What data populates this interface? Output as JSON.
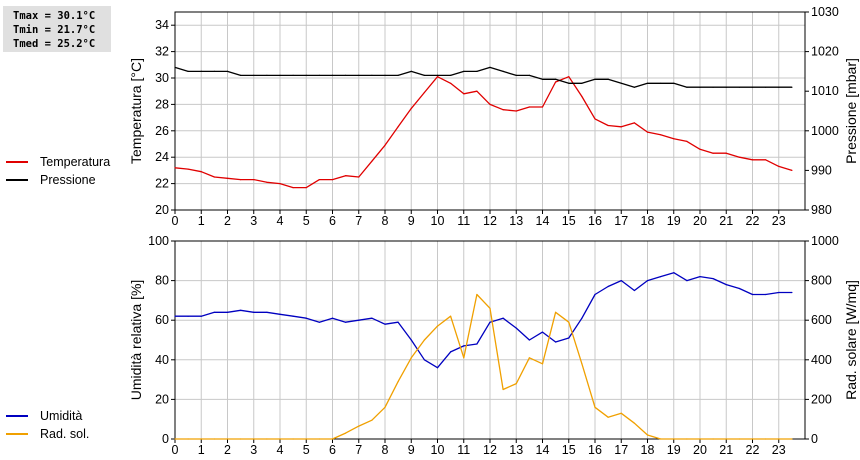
{
  "stats": {
    "tmax": "Tmax = 30.1°C",
    "tmin": "Tmin = 21.7°C",
    "tmed": "Tmed = 25.2°C"
  },
  "colors": {
    "temperature": "#e00000",
    "pressure": "#000000",
    "humidity": "#0000c0",
    "radiation": "#f0a000",
    "grid": "#c8c8c8"
  },
  "chart_data": [
    {
      "type": "line",
      "xlabel": "",
      "ylabel": "Temperatura [°C]",
      "ylabel_right": "Pressione [mbar]",
      "xlim": [
        0,
        24
      ],
      "ylim": [
        20,
        35
      ],
      "ylim_right": [
        980,
        1030
      ],
      "x_ticks": [
        "0",
        "1",
        "2",
        "3",
        "4",
        "5",
        "6",
        "7",
        "8",
        "9",
        "10",
        "11",
        "12",
        "13",
        "14",
        "15",
        "16",
        "17",
        "18",
        "19",
        "20",
        "21",
        "22",
        "23"
      ],
      "y_ticks": [
        "20",
        "22",
        "24",
        "26",
        "28",
        "30",
        "32",
        "34"
      ],
      "y_ticks_right": [
        "980",
        "990",
        "1000",
        "1010",
        "1020",
        "1030"
      ],
      "grid": true,
      "legend_position": "left",
      "series": [
        {
          "name": "Temperatura",
          "axis": "left",
          "x": [
            0,
            0.5,
            1,
            1.5,
            2,
            2.5,
            3,
            3.5,
            4,
            4.5,
            5,
            5.5,
            6,
            6.5,
            7,
            7.5,
            8,
            8.5,
            9,
            9.5,
            10,
            10.5,
            11,
            11.5,
            12,
            12.5,
            13,
            13.5,
            14,
            14.5,
            15,
            15.5,
            16,
            16.5,
            17,
            17.5,
            18,
            18.5,
            19,
            19.5,
            20,
            20.5,
            21,
            21.5,
            22,
            22.5,
            23,
            23.5
          ],
          "y": [
            23.2,
            23.1,
            22.9,
            22.5,
            22.4,
            22.3,
            22.3,
            22.1,
            22.0,
            21.7,
            21.7,
            22.3,
            22.3,
            22.6,
            22.5,
            23.7,
            24.9,
            26.3,
            27.7,
            28.9,
            30.1,
            29.6,
            28.8,
            29.0,
            28.0,
            27.6,
            27.5,
            27.8,
            27.8,
            29.7,
            30.1,
            28.6,
            26.9,
            26.4,
            26.3,
            26.6,
            25.9,
            25.7,
            25.4,
            25.2,
            24.6,
            24.3,
            24.3,
            24.0,
            23.8,
            23.8,
            23.3,
            23.0
          ]
        },
        {
          "name": "Pressione",
          "axis": "right",
          "x": [
            0,
            0.5,
            1,
            1.5,
            2,
            2.5,
            3,
            3.5,
            4,
            4.5,
            5,
            5.5,
            6,
            6.5,
            7,
            7.5,
            8,
            8.5,
            9,
            9.5,
            10,
            10.5,
            11,
            11.5,
            12,
            12.5,
            13,
            13.5,
            14,
            14.5,
            15,
            15.5,
            16,
            16.5,
            17,
            17.5,
            18,
            18.5,
            19,
            19.5,
            20,
            20.5,
            21,
            21.5,
            22,
            22.5,
            23,
            23.5
          ],
          "y": [
            1016,
            1015,
            1015,
            1015,
            1015,
            1014,
            1014,
            1014,
            1014,
            1014,
            1014,
            1014,
            1014,
            1014,
            1014,
            1014,
            1014,
            1014,
            1015,
            1014,
            1014,
            1014,
            1015,
            1015,
            1016,
            1015,
            1014,
            1014,
            1013,
            1013,
            1012,
            1012,
            1013,
            1013,
            1012,
            1011,
            1012,
            1012,
            1012,
            1011,
            1011,
            1011,
            1011,
            1011,
            1011,
            1011,
            1011,
            1011
          ]
        }
      ]
    },
    {
      "type": "line",
      "xlabel": "",
      "ylabel": "Umidità relativa [%]",
      "ylabel_right": "Rad. solare [W/mq]",
      "xlim": [
        0,
        24
      ],
      "ylim": [
        0,
        100
      ],
      "ylim_right": [
        0,
        1000
      ],
      "x_ticks": [
        "0",
        "1",
        "2",
        "3",
        "4",
        "5",
        "6",
        "7",
        "8",
        "9",
        "10",
        "11",
        "12",
        "13",
        "14",
        "15",
        "16",
        "17",
        "18",
        "19",
        "20",
        "21",
        "22",
        "23"
      ],
      "y_ticks": [
        "0",
        "20",
        "40",
        "60",
        "80",
        "100"
      ],
      "y_ticks_right": [
        "0",
        "200",
        "400",
        "600",
        "800",
        "1000"
      ],
      "grid": true,
      "legend_position": "left",
      "series": [
        {
          "name": "Umidità",
          "axis": "left",
          "x": [
            0,
            0.5,
            1,
            1.5,
            2,
            2.5,
            3,
            3.5,
            4,
            4.5,
            5,
            5.5,
            6,
            6.5,
            7,
            7.5,
            8,
            8.5,
            9,
            9.5,
            10,
            10.5,
            11,
            11.5,
            12,
            12.5,
            13,
            13.5,
            14,
            14.5,
            15,
            15.5,
            16,
            16.5,
            17,
            17.5,
            18,
            18.5,
            19,
            19.5,
            20,
            20.5,
            21,
            21.5,
            22,
            22.5,
            23,
            23.5
          ],
          "y": [
            62,
            62,
            62,
            64,
            64,
            65,
            64,
            64,
            63,
            62,
            61,
            59,
            61,
            59,
            60,
            61,
            58,
            59,
            50,
            40,
            36,
            44,
            47,
            48,
            59,
            61,
            56,
            50,
            54,
            49,
            51,
            61,
            73,
            77,
            80,
            75,
            80,
            82,
            84,
            80,
            82,
            81,
            78,
            76,
            73,
            73,
            74,
            74
          ]
        },
        {
          "name": "Rad. sol.",
          "axis": "right",
          "x": [
            0,
            0.5,
            1,
            1.5,
            2,
            2.5,
            3,
            3.5,
            4,
            4.5,
            5,
            5.5,
            6,
            6.5,
            7,
            7.5,
            8,
            8.5,
            9,
            9.5,
            10,
            10.5,
            11,
            11.5,
            12,
            12.5,
            13,
            13.5,
            14,
            14.5,
            15,
            15.5,
            16,
            16.5,
            17,
            17.5,
            18,
            18.5,
            19,
            19.5,
            20,
            20.5,
            21,
            21.5,
            22,
            22.5,
            23,
            23.5
          ],
          "y": [
            0,
            0,
            0,
            0,
            0,
            0,
            0,
            0,
            0,
            0,
            0,
            0,
            0,
            30,
            65,
            95,
            160,
            290,
            410,
            500,
            570,
            620,
            410,
            730,
            660,
            250,
            280,
            410,
            380,
            640,
            590,
            380,
            160,
            110,
            130,
            80,
            20,
            0,
            0,
            0,
            0,
            0,
            0,
            0,
            0,
            0,
            0,
            0
          ]
        }
      ]
    }
  ]
}
